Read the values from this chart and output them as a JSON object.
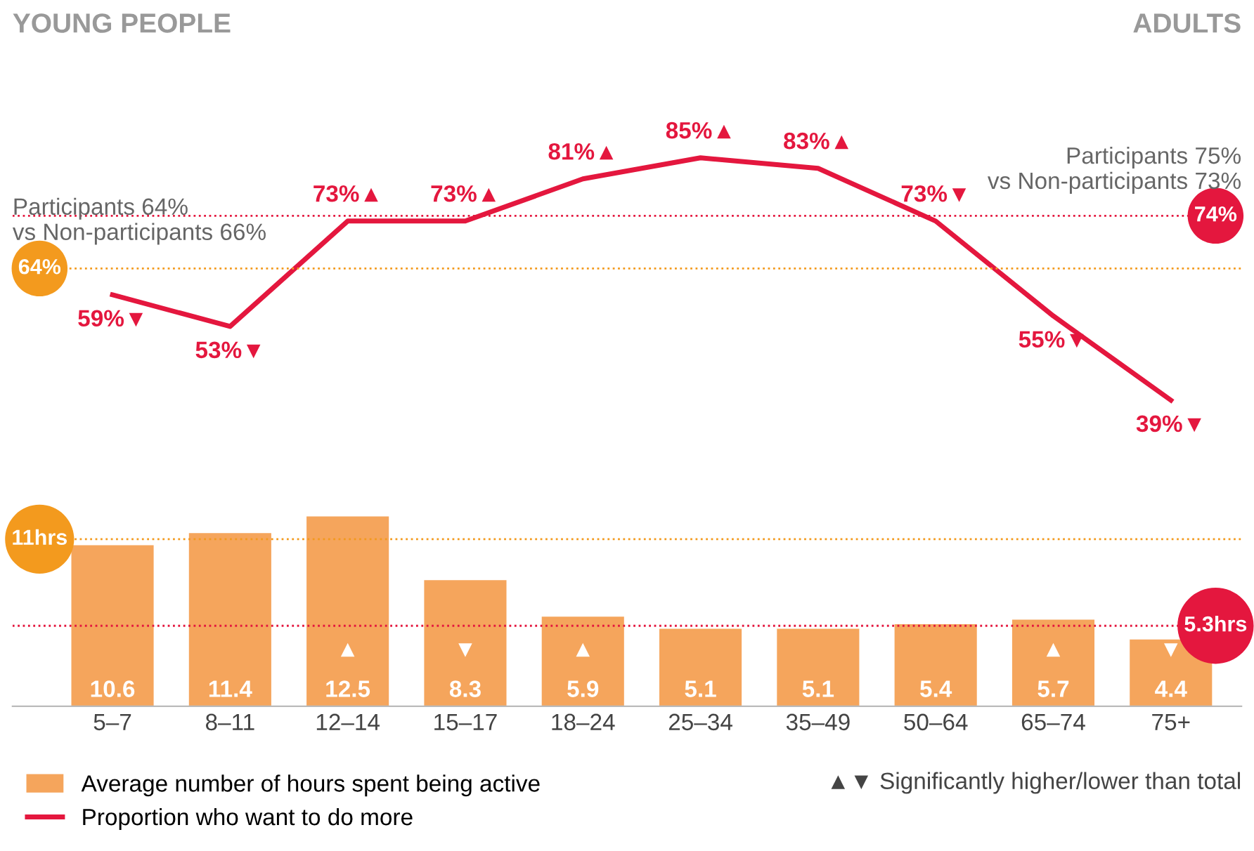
{
  "chart_data": [
    {
      "type": "line",
      "categories": [
        null,
        null,
        null,
        null,
        null,
        null,
        null,
        null,
        null,
        null
      ],
      "series": [
        {
          "name": "Proportion who want to do more",
          "color": "#e4173e",
          "values": [
            59,
            53,
            73,
            73,
            81,
            85,
            83,
            73,
            55,
            39
          ],
          "value_labels": [
            "59%▼",
            "53%▼",
            "73%▲",
            "73%▲",
            "81%▲",
            "85%▲",
            "83%▲",
            "73%▼",
            "55%▼",
            "39%▼"
          ]
        }
      ],
      "ref_lines": [
        {
          "axis": "y",
          "value": 64,
          "label": "64%",
          "color": "#f39a1e",
          "line_style": "dotted"
        },
        {
          "axis": "y",
          "value": 74,
          "label": "74%",
          "color": "#e4173e",
          "line_style": "dotted"
        }
      ],
      "annotations": [
        "YOUNG PEOPLE",
        "ADULTS",
        "Participants 64%\nvs Non-participants 66%",
        "Participants 75%\nvs Non-participants 73%"
      ],
      "tick_labels": false,
      "line_style": "solid"
    },
    {
      "type": "bar",
      "categories": [
        "5–7",
        "8–11",
        "12–14",
        "15–17",
        "18–24",
        "25–34",
        "35–49",
        "50–64",
        "65–74",
        "75+"
      ],
      "series": [
        {
          "name": "Average number of hours spent being active",
          "color": "#f5a55c",
          "values": [
            10.6,
            11.4,
            12.5,
            8.3,
            5.9,
            5.1,
            5.1,
            5.4,
            5.7,
            4.4
          ],
          "value_labels": [
            "10.6",
            "11.4",
            "▲\n\n12.5",
            "▼\n\n8.3",
            "▲\n\n5.9",
            "5.1",
            "5.1",
            "5.4",
            "▲\n\n5.7",
            "▼\n\n4.4"
          ]
        }
      ],
      "ref_lines": [
        {
          "axis": "y",
          "value": 11,
          "label": "11hrs",
          "color": "#f39a1e",
          "line_style": "dotted"
        },
        {
          "axis": "y",
          "value": 5.3,
          "label": "5.3hrs",
          "color": "#e4173e",
          "line_style": "dotted"
        }
      ],
      "annotations": [
        "▲▼ Significantly higher/lower than total"
      ],
      "tick_labels": "x",
      "legend": "bottom left"
    }
  ]
}
